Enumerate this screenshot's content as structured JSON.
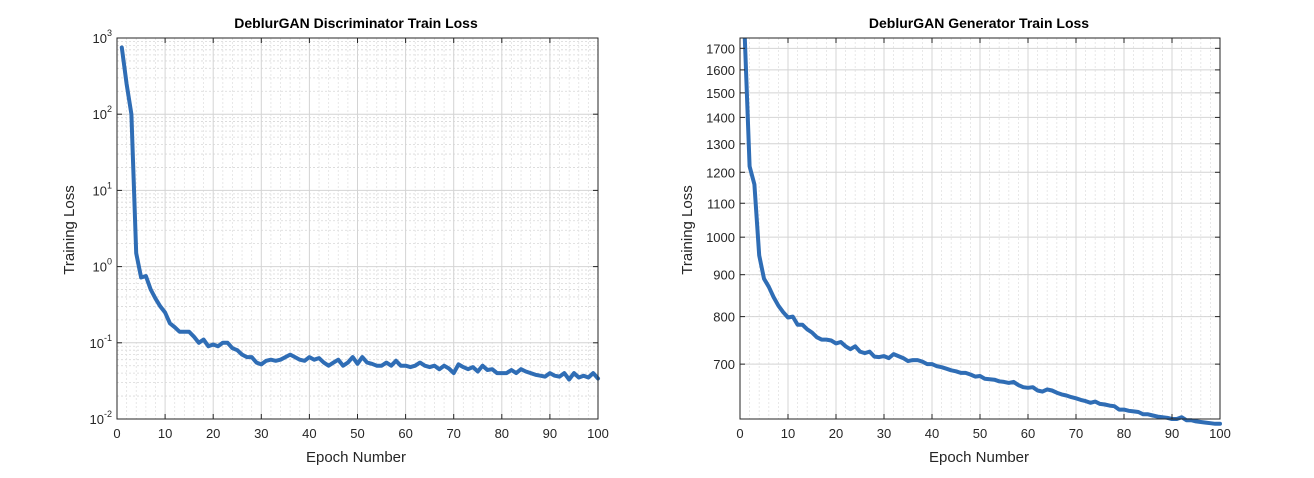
{
  "chart_data": [
    {
      "type": "line",
      "title": "DeblurGAN Discriminator Train Loss",
      "xlabel": "Epoch Number",
      "ylabel": "Training Loss",
      "yscale": "log",
      "xlim": [
        0,
        100
      ],
      "ylim": [
        0.01,
        1000
      ],
      "xticks": [
        0,
        10,
        20,
        30,
        40,
        50,
        60,
        70,
        80,
        90,
        100
      ],
      "yticks": [
        {
          "base": "10",
          "exp": "-2",
          "value": 0.01
        },
        {
          "base": "10",
          "exp": "-1",
          "value": 0.1
        },
        {
          "base": "10",
          "exp": "0",
          "value": 1
        },
        {
          "base": "10",
          "exp": "1",
          "value": 10
        },
        {
          "base": "10",
          "exp": "2",
          "value": 100
        },
        {
          "base": "10",
          "exp": "3",
          "value": 1000
        }
      ],
      "grid": true,
      "minor_grid": true,
      "line_color": "#2f6db5",
      "series": [
        {
          "x": [
            1,
            2,
            3,
            4,
            5,
            6,
            7,
            8,
            9,
            10,
            11,
            12,
            13,
            14,
            15,
            16,
            17,
            18,
            19,
            20,
            21,
            22,
            23,
            24,
            25,
            26,
            27,
            28,
            29,
            30,
            31,
            32,
            33,
            34,
            35,
            36,
            37,
            38,
            39,
            40,
            41,
            42,
            43,
            44,
            45,
            46,
            47,
            48,
            49,
            50,
            51,
            52,
            53,
            54,
            55,
            56,
            57,
            58,
            59,
            60,
            61,
            62,
            63,
            64,
            65,
            66,
            67,
            68,
            69,
            70,
            71,
            72,
            73,
            74,
            75,
            76,
            77,
            78,
            79,
            80,
            81,
            82,
            83,
            84,
            85,
            86,
            87,
            88,
            89,
            90,
            91,
            92,
            93,
            94,
            95,
            96,
            97,
            98,
            99,
            100
          ],
          "y": [
            750,
            250,
            100,
            1.5,
            0.72,
            0.75,
            0.5,
            0.38,
            0.3,
            0.25,
            0.18,
            0.16,
            0.14,
            0.14,
            0.14,
            0.12,
            0.1,
            0.11,
            0.09,
            0.095,
            0.09,
            0.1,
            0.1,
            0.085,
            0.08,
            0.07,
            0.065,
            0.065,
            0.055,
            0.052,
            0.058,
            0.06,
            0.058,
            0.06,
            0.065,
            0.07,
            0.065,
            0.06,
            0.058,
            0.065,
            0.06,
            0.063,
            0.055,
            0.05,
            0.055,
            0.06,
            0.05,
            0.055,
            0.065,
            0.053,
            0.065,
            0.055,
            0.053,
            0.05,
            0.05,
            0.055,
            0.05,
            0.058,
            0.05,
            0.05,
            0.048,
            0.05,
            0.055,
            0.05,
            0.048,
            0.05,
            0.045,
            0.05,
            0.046,
            0.04,
            0.052,
            0.048,
            0.045,
            0.048,
            0.042,
            0.05,
            0.044,
            0.045,
            0.04,
            0.04,
            0.04,
            0.044,
            0.04,
            0.045,
            0.042,
            0.04,
            0.038,
            0.037,
            0.036,
            0.04,
            0.037,
            0.036,
            0.04,
            0.033,
            0.04,
            0.035,
            0.037,
            0.035,
            0.04,
            0.034
          ]
        }
      ]
    },
    {
      "type": "line",
      "title": "DeblurGAN Generator Train Loss",
      "xlabel": "Epoch Number",
      "ylabel": "Training Loss",
      "yscale": "log",
      "xlim": [
        0,
        100
      ],
      "ylim": [
        600,
        1750
      ],
      "xticks": [
        0,
        10,
        20,
        30,
        40,
        50,
        60,
        70,
        80,
        90,
        100
      ],
      "yticks": [
        700,
        800,
        900,
        1000,
        1100,
        1200,
        1300,
        1400,
        1500,
        1600,
        1700
      ],
      "grid": true,
      "minor_grid": true,
      "line_color": "#2f6db5",
      "series": [
        {
          "x": [
            1,
            2,
            3,
            4,
            5,
            6,
            7,
            8,
            9,
            10,
            11,
            12,
            13,
            14,
            15,
            16,
            17,
            18,
            19,
            20,
            21,
            22,
            23,
            24,
            25,
            26,
            27,
            28,
            29,
            30,
            31,
            32,
            33,
            34,
            35,
            36,
            37,
            38,
            39,
            40,
            41,
            42,
            43,
            44,
            45,
            46,
            47,
            48,
            49,
            50,
            51,
            52,
            53,
            54,
            55,
            56,
            57,
            58,
            59,
            60,
            61,
            62,
            63,
            64,
            65,
            66,
            67,
            68,
            69,
            70,
            71,
            72,
            73,
            74,
            75,
            76,
            77,
            78,
            79,
            80,
            81,
            82,
            83,
            84,
            85,
            86,
            87,
            88,
            89,
            90,
            91,
            92,
            93,
            94,
            95,
            96,
            97,
            98,
            99,
            100
          ],
          "y": [
            1750,
            1220,
            1160,
            950,
            890,
            870,
            845,
            825,
            810,
            798,
            800,
            782,
            782,
            772,
            765,
            755,
            750,
            750,
            748,
            742,
            745,
            736,
            730,
            736,
            725,
            722,
            725,
            715,
            714,
            716,
            712,
            720,
            716,
            712,
            706,
            708,
            708,
            705,
            700,
            700,
            696,
            694,
            691,
            688,
            686,
            683,
            683,
            680,
            676,
            677,
            672,
            671,
            670,
            667,
            666,
            664,
            666,
            660,
            656,
            655,
            656,
            650,
            648,
            652,
            650,
            646,
            643,
            641,
            638,
            636,
            633,
            631,
            628,
            630,
            626,
            625,
            623,
            622,
            616,
            616,
            614,
            613,
            612,
            608,
            608,
            606,
            604,
            603,
            602,
            600,
            600,
            603,
            598,
            598,
            596,
            595,
            594,
            593,
            592,
            592
          ]
        }
      ]
    }
  ]
}
